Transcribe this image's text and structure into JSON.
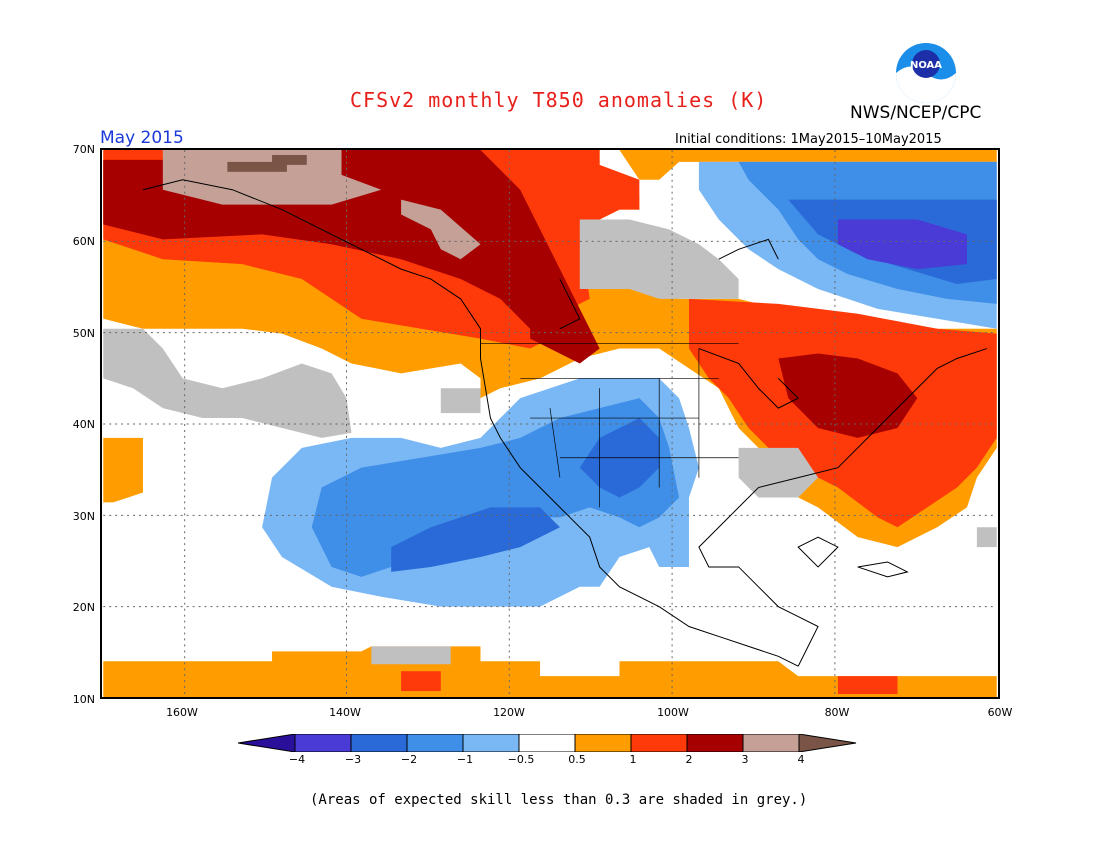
{
  "header": {
    "title": "CFSv2 monthly T850 anomalies (K)",
    "agency": "NWS/NCEP/CPC",
    "logo_text": "NOAA",
    "month": "May 2015",
    "initial_conditions": "Initial conditions: 1May2015–10May2015"
  },
  "map": {
    "lat_labels": [
      "70N",
      "60N",
      "50N",
      "40N",
      "30N",
      "20N",
      "10N"
    ],
    "lon_labels": [
      "160W",
      "140W",
      "120W",
      "100W",
      "80W",
      "60W"
    ]
  },
  "colorbar": {
    "labels": [
      "−4",
      "−3",
      "−2",
      "−1",
      "−0.5",
      "0.5",
      "1",
      "2",
      "3",
      "4"
    ],
    "colors": [
      "#2a0f9a",
      "#4a3ad6",
      "#2a6ad8",
      "#3f8fe8",
      "#7ab8f5",
      "#ffffff",
      "#ff9d00",
      "#ff3a0a",
      "#a60000",
      "#c4a097",
      "#7a5547"
    ]
  },
  "footnote": "(Areas of expected skill less than 0.3 are shaded in grey.)"
}
